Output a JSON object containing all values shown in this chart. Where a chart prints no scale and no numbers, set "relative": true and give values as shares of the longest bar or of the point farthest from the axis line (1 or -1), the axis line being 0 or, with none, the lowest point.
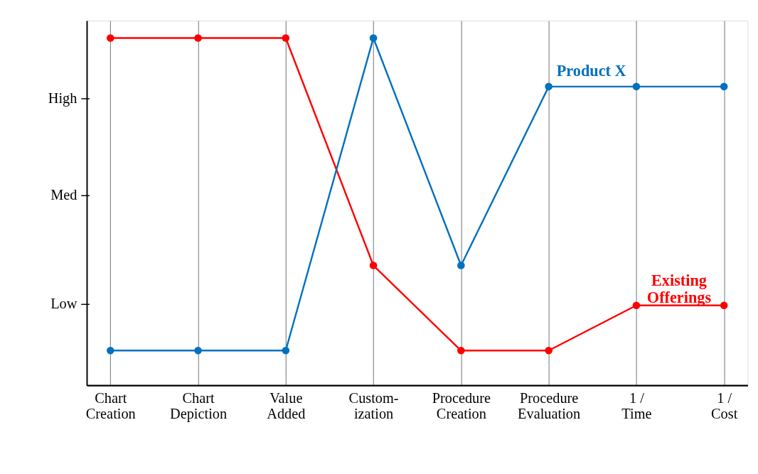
{
  "chart_data": {
    "type": "line",
    "relative": true,
    "categories": [
      "Chart\nCreation",
      "Chart\nDepiction",
      "Value\nAdded",
      "Custom-\nization",
      "Procedure\nCreation",
      "Procedure\nEvaluation",
      "1 /\nTime",
      "1 /\nCost"
    ],
    "series": [
      {
        "name": "Existing\nOfferings",
        "color": "#ff0000",
        "values": [
          1.0,
          1.0,
          1.0,
          0.345,
          0.1,
          0.1,
          0.23,
          0.23
        ]
      },
      {
        "name": "Product X",
        "color": "#0070c0",
        "values": [
          0.1,
          0.1,
          0.1,
          1.0,
          0.345,
          0.86,
          0.86,
          0.86
        ]
      }
    ],
    "annotations": [
      "Low",
      "Med",
      "High"
    ],
    "grid": "x",
    "marker": "circle",
    "line_style": "solid"
  }
}
